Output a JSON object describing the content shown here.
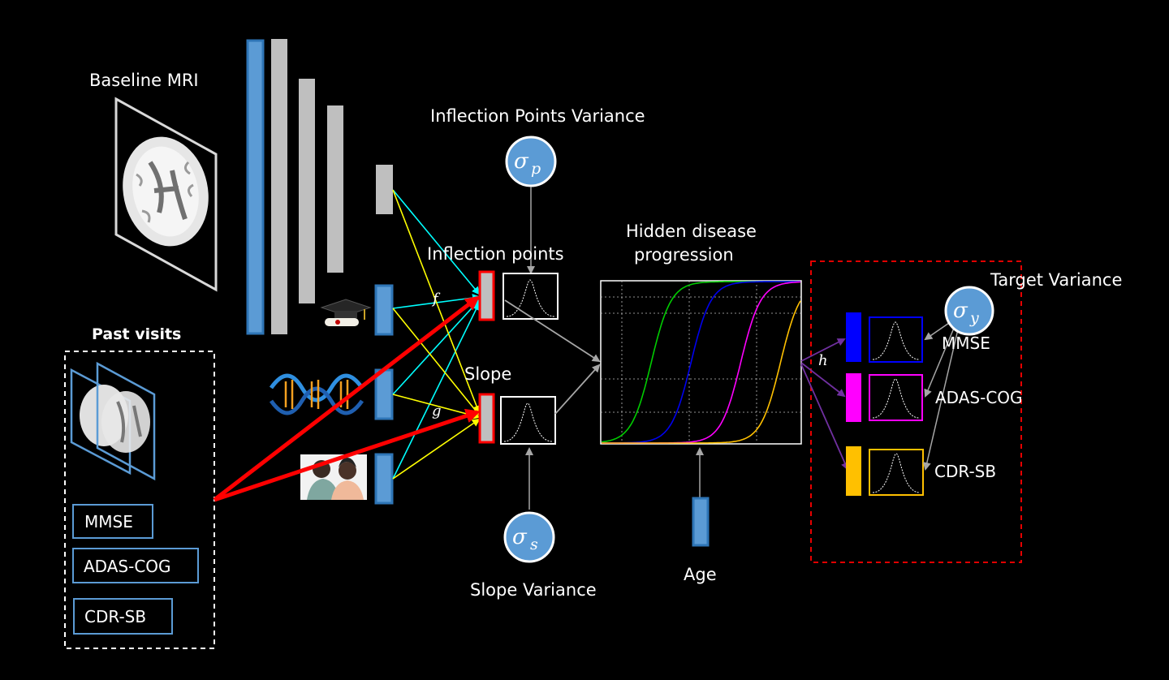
{
  "labels": {
    "baseline_mri": "Baseline MRI",
    "inflection_points_variance": "Inflection Points Variance",
    "inflection_points": "Inflection points",
    "hidden_disease_line1": "Hidden disease",
    "hidden_disease_line2": "progression",
    "target_variance": "Target Variance",
    "past_visits": "Past visits",
    "slope": "Slope",
    "slope_variance": "Slope Variance",
    "age": "Age"
  },
  "symbols": {
    "f": "f",
    "g": "g",
    "h": "h",
    "sigma": "σ",
    "p": "p",
    "s": "s",
    "y": "y"
  },
  "past_visit_scores": [
    "MMSE",
    "ADAS-COG",
    "CDR-SB"
  ],
  "targets": [
    {
      "label": "MMSE",
      "color": "#0000ff"
    },
    {
      "label": "ADAS-COG",
      "color": "#ff00ff"
    },
    {
      "label": "CDR-SB",
      "color": "#ffc000"
    }
  ],
  "chart_data": {
    "type": "line",
    "title": "Hidden disease progression",
    "xlabel": "Age",
    "ylabel": "",
    "grid": true,
    "series": [
      {
        "name": "curve-green",
        "color": "#00cc00",
        "midpoint": 0.25,
        "steepness": 20
      },
      {
        "name": "curve-blue",
        "color": "#0000ee",
        "midpoint": 0.45,
        "steepness": 20
      },
      {
        "name": "curve-magenta",
        "color": "#ff00ff",
        "midpoint": 0.7,
        "steepness": 20
      },
      {
        "name": "curve-yellow",
        "color": "#ffc000",
        "midpoint": 0.9,
        "steepness": 20
      }
    ]
  },
  "colors": {
    "encoder_blue": "#5b9bd5",
    "encoder_gray": "#bfbfbf",
    "cyan": "#00ffff",
    "yellow": "#ffff00",
    "red_arrow": "#ff0000",
    "gray_arrow": "#a6a6a6",
    "purple_arrow": "#7030a0"
  }
}
